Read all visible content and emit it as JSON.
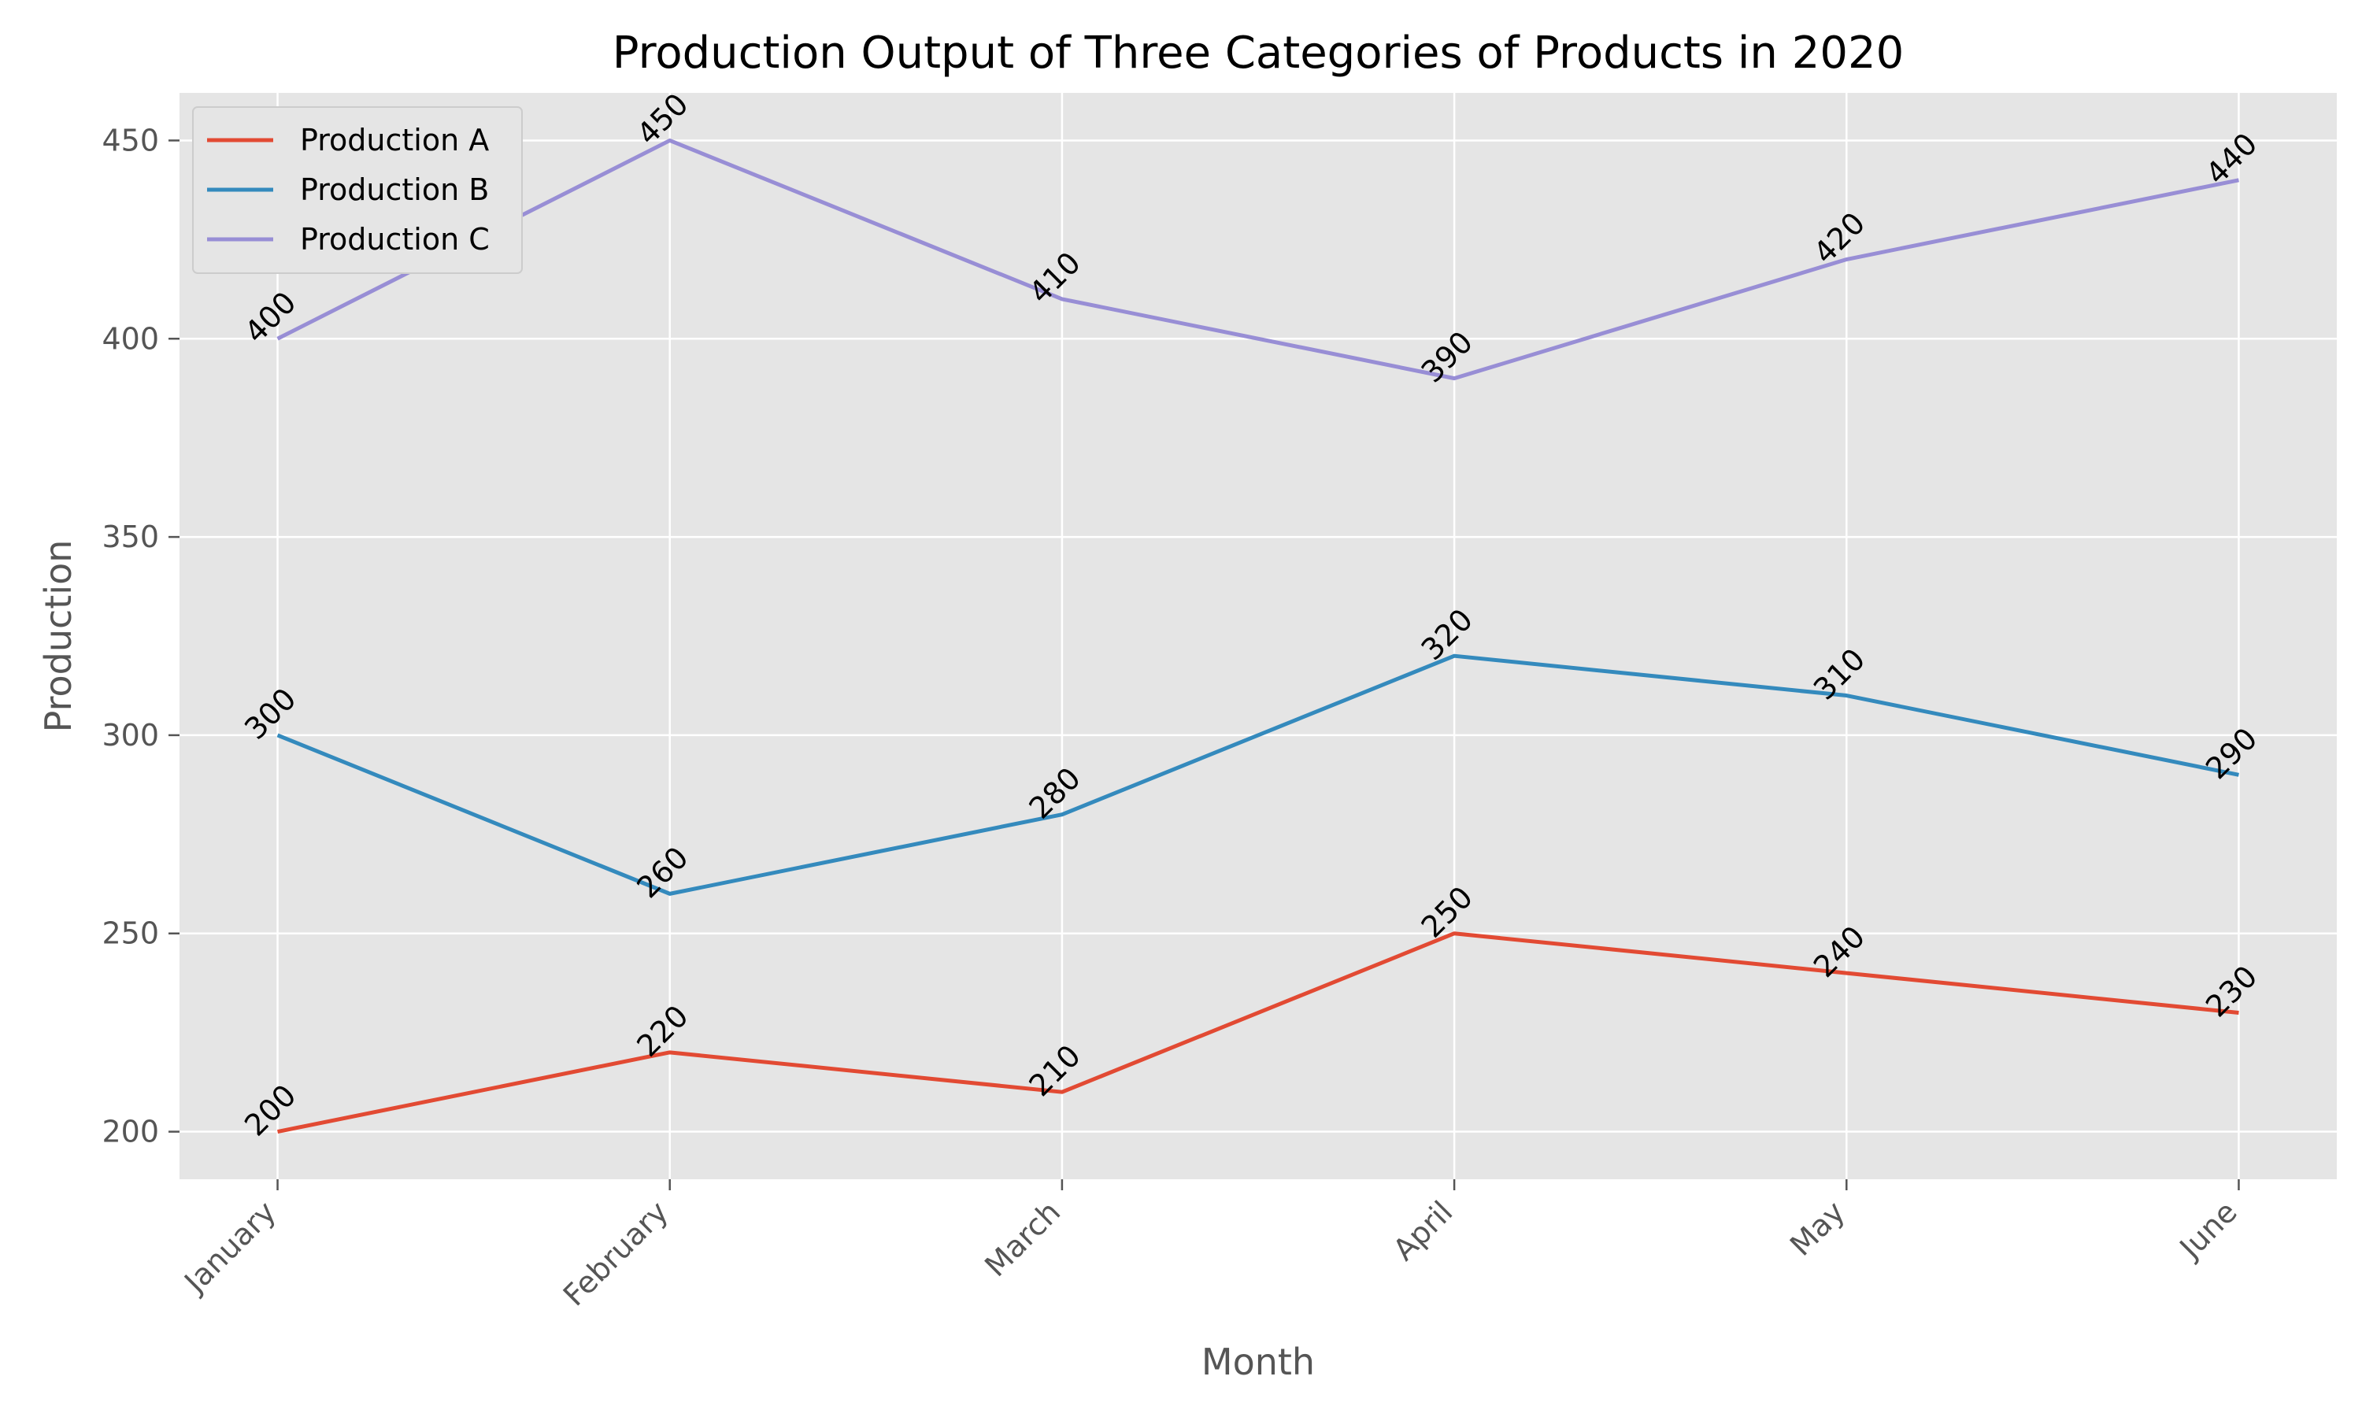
{
  "chart_data": {
    "type": "line",
    "title": "Production Output of Three Categories of Products in 2020",
    "xlabel": "Month",
    "ylabel": "Production",
    "categories": [
      "January",
      "February",
      "March",
      "April",
      "May",
      "June"
    ],
    "series": [
      {
        "name": "Production A",
        "color": "#E24A33",
        "values": [
          200,
          220,
          210,
          250,
          240,
          230
        ]
      },
      {
        "name": "Production B",
        "color": "#348ABD",
        "values": [
          300,
          260,
          280,
          320,
          310,
          290
        ]
      },
      {
        "name": "Production C",
        "color": "#988ED5",
        "values": [
          400,
          450,
          410,
          390,
          420,
          440
        ]
      }
    ],
    "ylim": [
      188,
      462
    ],
    "yticks": [
      200,
      250,
      300,
      350,
      400,
      450
    ],
    "grid": true,
    "legend": "top-left",
    "background": "#E5E5E5"
  }
}
